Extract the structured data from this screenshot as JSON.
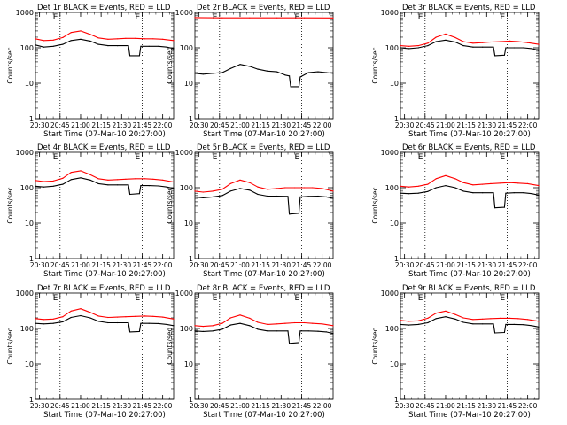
{
  "figure": {
    "background": "#ffffff",
    "event_color": "#000000",
    "lld_color": "#ff0000",
    "marker_color": "#000000"
  },
  "axes_common": {
    "type": "line",
    "ylabel": "Counts/sec",
    "xlabel": "Start Time (07-Mar-10 20:27:00)",
    "x_range_minutes": [
      "20:27",
      "22:08"
    ],
    "x_ticks": [
      "20:30",
      "20:45",
      "21:00",
      "21:15",
      "21:30",
      "21:45",
      "22:00"
    ],
    "y_scale": "log",
    "y_range": [
      1,
      1000
    ],
    "y_ticks": [
      "1",
      "10",
      "100",
      "1000"
    ],
    "vertical_markers": [
      "20:45",
      "21:45"
    ],
    "marker_labels": [
      "E",
      "E"
    ],
    "grid": false,
    "legend": "none"
  },
  "chart_data": [
    {
      "type": "line",
      "title": "Det 1r BLACK = Events, RED = LLD",
      "series": [
        {
          "name": "Events",
          "color": "#000000",
          "x": [
            "20:27",
            "20:33",
            "20:40",
            "20:47",
            "20:53",
            "21:00",
            "21:07",
            "21:13",
            "21:20",
            "21:27",
            "21:35",
            "21:36",
            "21:43",
            "21:44",
            "21:50",
            "21:57",
            "22:03",
            "22:08"
          ],
          "values": [
            120,
            105,
            110,
            125,
            160,
            175,
            155,
            125,
            115,
            115,
            115,
            60,
            60,
            110,
            110,
            110,
            105,
            95
          ]
        },
        {
          "name": "LLD",
          "color": "#ff0000",
          "x": [
            "20:27",
            "20:33",
            "20:40",
            "20:47",
            "20:53",
            "21:00",
            "21:07",
            "21:13",
            "21:20",
            "21:27",
            "21:33",
            "21:40",
            "21:47",
            "21:53",
            "22:00",
            "22:08"
          ],
          "values": [
            180,
            160,
            165,
            195,
            270,
            300,
            240,
            190,
            175,
            180,
            185,
            185,
            180,
            180,
            175,
            160
          ]
        }
      ]
    },
    {
      "type": "line",
      "title": "Det 2r BLACK = Events, RED = LLD",
      "series": [
        {
          "name": "Events",
          "color": "#000000",
          "x": [
            "20:27",
            "20:33",
            "20:40",
            "20:47",
            "20:53",
            "21:00",
            "21:07",
            "21:13",
            "21:20",
            "21:27",
            "21:33",
            "21:36",
            "21:37",
            "21:43",
            "21:44",
            "21:50",
            "21:57",
            "22:03",
            "22:08"
          ],
          "values": [
            19,
            18,
            19,
            20,
            26,
            34,
            30,
            25,
            22,
            21,
            17,
            16,
            8,
            8,
            15,
            20,
            21,
            20,
            19
          ]
        },
        {
          "name": "LLD",
          "color": "#ff0000",
          "x": [
            "20:27",
            "20:47",
            "21:07",
            "21:27",
            "21:47",
            "22:08"
          ],
          "values": [
            710,
            700,
            700,
            700,
            700,
            695
          ]
        }
      ]
    },
    {
      "type": "line",
      "title": "Det 3r BLACK = Events, RED = LLD",
      "series": [
        {
          "name": "Events",
          "color": "#000000",
          "x": [
            "20:27",
            "20:33",
            "20:40",
            "20:47",
            "20:53",
            "21:00",
            "21:07",
            "21:13",
            "21:20",
            "21:27",
            "21:35",
            "21:36",
            "21:43",
            "21:44",
            "21:50",
            "21:57",
            "22:03",
            "22:08"
          ],
          "values": [
            100,
            95,
            100,
            115,
            150,
            165,
            145,
            115,
            105,
            105,
            105,
            60,
            62,
            100,
            100,
            100,
            95,
            85
          ]
        },
        {
          "name": "LLD",
          "color": "#ff0000",
          "x": [
            "20:27",
            "20:33",
            "20:40",
            "20:47",
            "20:53",
            "21:00",
            "21:07",
            "21:13",
            "21:20",
            "21:27",
            "21:33",
            "21:40",
            "21:47",
            "21:53",
            "22:00",
            "22:08"
          ],
          "values": [
            115,
            110,
            115,
            135,
            200,
            245,
            195,
            150,
            135,
            140,
            145,
            150,
            155,
            150,
            140,
            125
          ]
        }
      ]
    },
    {
      "type": "line",
      "title": "Det 4r BLACK = Events, RED = LLD",
      "series": [
        {
          "name": "Events",
          "color": "#000000",
          "x": [
            "20:27",
            "20:33",
            "20:40",
            "20:47",
            "20:53",
            "21:00",
            "21:07",
            "21:13",
            "21:20",
            "21:27",
            "21:35",
            "21:36",
            "21:43",
            "21:44",
            "21:50",
            "21:57",
            "22:03",
            "22:08"
          ],
          "values": [
            110,
            105,
            110,
            125,
            170,
            190,
            165,
            130,
            120,
            120,
            120,
            65,
            68,
            115,
            115,
            112,
            105,
            95
          ]
        },
        {
          "name": "LLD",
          "color": "#ff0000",
          "x": [
            "20:27",
            "20:33",
            "20:40",
            "20:47",
            "20:53",
            "21:00",
            "21:07",
            "21:13",
            "21:20",
            "21:27",
            "21:33",
            "21:40",
            "21:47",
            "21:53",
            "22:00",
            "22:08"
          ],
          "values": [
            160,
            150,
            155,
            185,
            270,
            300,
            235,
            180,
            165,
            170,
            175,
            180,
            180,
            175,
            165,
            145
          ]
        }
      ]
    },
    {
      "type": "line",
      "title": "Det 5r BLACK = Events, RED = LLD",
      "series": [
        {
          "name": "Events",
          "color": "#000000",
          "x": [
            "20:27",
            "20:33",
            "20:40",
            "20:47",
            "20:53",
            "21:00",
            "21:07",
            "21:13",
            "21:20",
            "21:27",
            "21:35",
            "21:36",
            "21:43",
            "21:44",
            "21:50",
            "21:57",
            "22:03",
            "22:08"
          ],
          "values": [
            55,
            52,
            55,
            60,
            80,
            95,
            85,
            65,
            58,
            58,
            57,
            18,
            19,
            55,
            57,
            58,
            55,
            50
          ]
        },
        {
          "name": "LLD",
          "color": "#ff0000",
          "x": [
            "20:27",
            "20:33",
            "20:40",
            "20:47",
            "20:53",
            "21:00",
            "21:07",
            "21:13",
            "21:20",
            "21:27",
            "21:33",
            "21:40",
            "21:47",
            "21:53",
            "22:00",
            "22:08"
          ],
          "values": [
            80,
            75,
            80,
            90,
            130,
            165,
            140,
            105,
            90,
            95,
            100,
            100,
            100,
            100,
            95,
            80
          ]
        }
      ]
    },
    {
      "type": "line",
      "title": "Det 6r BLACK = Events, RED = LLD",
      "series": [
        {
          "name": "Events",
          "color": "#000000",
          "x": [
            "20:27",
            "20:33",
            "20:40",
            "20:47",
            "20:53",
            "21:00",
            "21:07",
            "21:13",
            "21:20",
            "21:27",
            "21:35",
            "21:36",
            "21:43",
            "21:44",
            "21:50",
            "21:57",
            "22:03",
            "22:08"
          ],
          "values": [
            70,
            68,
            70,
            78,
            100,
            115,
            100,
            80,
            72,
            72,
            72,
            27,
            28,
            70,
            72,
            72,
            68,
            62
          ]
        },
        {
          "name": "LLD",
          "color": "#ff0000",
          "x": [
            "20:27",
            "20:33",
            "20:40",
            "20:47",
            "20:53",
            "21:00",
            "21:07",
            "21:13",
            "21:20",
            "21:27",
            "21:33",
            "21:40",
            "21:47",
            "21:53",
            "22:00",
            "22:08"
          ],
          "values": [
            110,
            105,
            110,
            125,
            180,
            220,
            180,
            140,
            120,
            125,
            130,
            135,
            140,
            135,
            130,
            115
          ]
        }
      ]
    },
    {
      "type": "line",
      "title": "Det 7r BLACK = Events, RED = LLD",
      "series": [
        {
          "name": "Events",
          "color": "#000000",
          "x": [
            "20:27",
            "20:33",
            "20:40",
            "20:47",
            "20:53",
            "21:00",
            "21:07",
            "21:13",
            "21:20",
            "21:27",
            "21:35",
            "21:36",
            "21:43",
            "21:44",
            "21:50",
            "21:57",
            "22:03",
            "22:08"
          ],
          "values": [
            140,
            135,
            140,
            155,
            205,
            230,
            200,
            160,
            145,
            145,
            145,
            80,
            82,
            140,
            140,
            138,
            130,
            120
          ]
        },
        {
          "name": "LLD",
          "color": "#ff0000",
          "x": [
            "20:27",
            "20:33",
            "20:40",
            "20:47",
            "20:53",
            "21:00",
            "21:07",
            "21:13",
            "21:20",
            "21:27",
            "21:33",
            "21:40",
            "21:47",
            "21:53",
            "22:00",
            "22:08"
          ],
          "values": [
            190,
            180,
            185,
            215,
            310,
            360,
            285,
            225,
            205,
            210,
            215,
            220,
            225,
            220,
            210,
            185
          ]
        }
      ]
    },
    {
      "type": "line",
      "title": "Det 8r BLACK = Events, RED = LLD",
      "series": [
        {
          "name": "Events",
          "color": "#000000",
          "x": [
            "20:27",
            "20:33",
            "20:40",
            "20:47",
            "20:53",
            "21:00",
            "21:07",
            "21:13",
            "21:20",
            "21:27",
            "21:35",
            "21:36",
            "21:43",
            "21:44",
            "21:50",
            "21:57",
            "22:03",
            "22:08"
          ],
          "values": [
            85,
            82,
            85,
            95,
            125,
            140,
            120,
            95,
            85,
            85,
            85,
            38,
            40,
            85,
            85,
            83,
            80,
            72
          ]
        },
        {
          "name": "LLD",
          "color": "#ff0000",
          "x": [
            "20:27",
            "20:33",
            "20:40",
            "20:47",
            "20:53",
            "21:00",
            "21:07",
            "21:13",
            "21:20",
            "21:27",
            "21:33",
            "21:40",
            "21:47",
            "21:53",
            "22:00",
            "22:08"
          ],
          "values": [
            120,
            115,
            120,
            140,
            200,
            240,
            195,
            150,
            130,
            135,
            140,
            145,
            145,
            140,
            135,
            120
          ]
        }
      ]
    },
    {
      "type": "line",
      "title": "Det 9r BLACK = Events, RED = LLD",
      "series": [
        {
          "name": "Events",
          "color": "#000000",
          "x": [
            "20:27",
            "20:33",
            "20:40",
            "20:47",
            "20:53",
            "21:00",
            "21:07",
            "21:13",
            "21:20",
            "21:27",
            "21:35",
            "21:36",
            "21:43",
            "21:44",
            "21:50",
            "21:57",
            "22:03",
            "22:08"
          ],
          "values": [
            130,
            125,
            130,
            145,
            190,
            215,
            185,
            150,
            135,
            135,
            135,
            75,
            77,
            130,
            130,
            128,
            120,
            110
          ]
        },
        {
          "name": "LLD",
          "color": "#ff0000",
          "x": [
            "20:27",
            "20:33",
            "20:40",
            "20:47",
            "20:53",
            "21:00",
            "21:07",
            "21:13",
            "21:20",
            "21:27",
            "21:33",
            "21:40",
            "21:47",
            "21:53",
            "22:00",
            "22:08"
          ],
          "values": [
            170,
            160,
            165,
            195,
            270,
            310,
            250,
            200,
            180,
            185,
            190,
            195,
            195,
            190,
            180,
            160
          ]
        }
      ]
    }
  ]
}
